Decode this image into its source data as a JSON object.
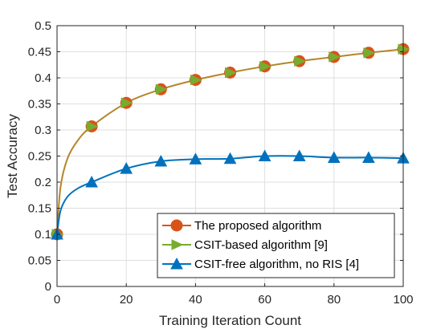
{
  "chart_data": {
    "type": "line",
    "xlabel": "Training Iteration Count",
    "ylabel": "Test Accuracy",
    "xlim": [
      0,
      100
    ],
    "ylim": [
      0,
      0.5
    ],
    "xticks": [
      "0",
      "20",
      "40",
      "60",
      "80",
      "100"
    ],
    "yticks": [
      "0",
      "0.05",
      "0.1",
      "0.15",
      "0.2",
      "0.25",
      "0.3",
      "0.35",
      "0.4",
      "0.45",
      "0.5"
    ],
    "grid": true,
    "legend_position": "bottom-right",
    "series": [
      {
        "name": "The proposed algorithm",
        "color": "#d95319",
        "marker": "circle",
        "x": [
          0,
          10,
          20,
          30,
          40,
          50,
          60,
          70,
          80,
          90,
          100
        ],
        "y": [
          0.1,
          0.307,
          0.352,
          0.378,
          0.396,
          0.41,
          0.422,
          0.432,
          0.44,
          0.448,
          0.455
        ]
      },
      {
        "name": "CSIT-based algorithm [9]",
        "color": "#77ac30",
        "marker": "triangle-right",
        "x": [
          0,
          10,
          20,
          30,
          40,
          50,
          60,
          70,
          80,
          90,
          100
        ],
        "y": [
          0.1,
          0.307,
          0.352,
          0.378,
          0.396,
          0.41,
          0.422,
          0.432,
          0.44,
          0.448,
          0.455
        ]
      },
      {
        "name": "CSIT-free algorithm, no RIS [4]",
        "color": "#0072bd",
        "marker": "triangle-up",
        "x": [
          0,
          10,
          20,
          30,
          40,
          50,
          60,
          70,
          80,
          90,
          100
        ],
        "y": [
          0.1,
          0.2,
          0.226,
          0.24,
          0.244,
          0.245,
          0.25,
          0.25,
          0.247,
          0.247,
          0.246
        ]
      }
    ],
    "curve_color": "#b5862a"
  }
}
